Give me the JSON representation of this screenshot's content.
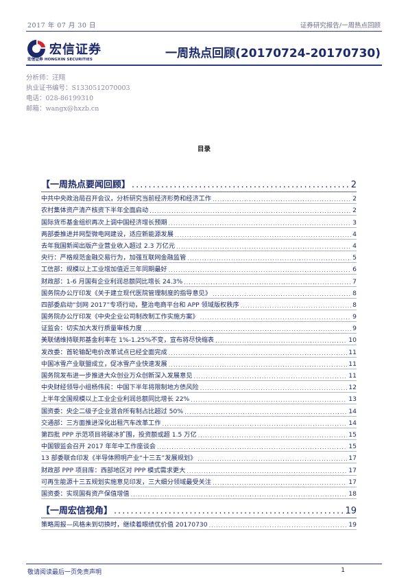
{
  "header": {
    "date": "2017 年 07 月 30 日",
    "category": "证券研究报告/一周热点回顾",
    "logo_cn": "宏信证券",
    "logo_en": "宏信证券 HONGXIN SECURITIES",
    "title": "一周热点回顾(20170724-20170730)"
  },
  "analyst": {
    "name": "分析师：汪翔",
    "license": "执业证书编号：S1330512070003",
    "phone": "电话：028-86199310",
    "email": "邮箱：wangx@hxzb.cn"
  },
  "toc_heading": "目录",
  "sections": [
    {
      "title": "【一周热点要闻回顾】",
      "page": "2",
      "entries": [
        {
          "label": "中共中央政治局召开会议，分析研究当前经济形势和经济工作",
          "page": "2"
        },
        {
          "label": "农村集体资产清产核资下半年全面启动",
          "page": "2"
        },
        {
          "label": "国际货币基金组织再次上调中国经济增长预期",
          "page": "3"
        },
        {
          "label": "两部委推进并网型微电网建设，适应新能源发展",
          "page": "4"
        },
        {
          "label": "去年我国新闻出版产业营业收入超过 2.3 万亿元",
          "page": "4"
        },
        {
          "label": "央行：严格规范金融交易行为，加强互联网金融监管",
          "page": "5"
        },
        {
          "label": "工信部：规模以上工业增加值近三年同期最好",
          "page": "6"
        },
        {
          "label": "财政部：1-6 月国有企业利润总额同比增长 24.3%",
          "page": "7"
        },
        {
          "label": "国务院办公厅印发《关于建立现代医院管理制度的指导意见》",
          "page": "8"
        },
        {
          "label": "四部委启动“剑网 2017”专项行动，整治电商平台和 APP 领域版权秩序",
          "page": "8"
        },
        {
          "label": "国务院办公厅印发《中央企业公司制改制工作实施方案》",
          "page": "9"
        },
        {
          "label": "证监会：切实加大发行质量审核力度",
          "page": "9"
        },
        {
          "label": "美联储维持联邦基金利率在 1%-1.25%不变，宣布将尽快缩表",
          "page": "10"
        },
        {
          "label": "发改委：首轮输配电价改革试点已经全面完成",
          "page": "11"
        },
        {
          "label": "中国冰雪产业联盟成立，促冰雪产业快速发展",
          "page": "11"
        },
        {
          "label": "国务院发布进一步推进大众创业万众创新深入发展意见",
          "page": "11"
        },
        {
          "label": "中央财经领导小组杨伟民：中国下半年将限制地方债风险",
          "page": "12"
        },
        {
          "label": "上半年全国规模以上工业企业利润总额同比增长 22%",
          "page": "13"
        },
        {
          "label": "国资委：央企二级子企业混合所有制占比超过 50%",
          "page": "14"
        },
        {
          "label": "交通部：三方面推进深化出租汽车改革工作",
          "page": "14"
        },
        {
          "label": "第四批 PPP 示范项目将破冰扩围，投资额或超 1.5 万亿",
          "page": "15"
        },
        {
          "label": "中国银监会召开 2017 年年中工作座谈会",
          "page": "15"
        },
        {
          "label": "13 部委联合印发《半导体照明产业“十三五”发展规划》",
          "page": "17"
        },
        {
          "label": "财政部 PPP 项目库：西部地区对 PPP 模式需求更大",
          "page": "17"
        },
        {
          "label": "可再生能源十三五规划实施意见印发，三大细分领域最受关注",
          "page": "17"
        },
        {
          "label": "国资委：实现国有资产保值增值",
          "page": "18"
        }
      ]
    },
    {
      "title": "【一周宏信视角】",
      "page": "19",
      "entries": [
        {
          "label": "策略周报—风格未到切换时，继续着眼绩优价值 20170730",
          "page": "19"
        }
      ]
    }
  ],
  "footer": {
    "disclaimer": "敬请阅读最后一页免责声明",
    "page": "1"
  },
  "colors": {
    "brand": "#1c2a6c",
    "rule": "#2b3b8c",
    "logo_red": "#d8262c"
  }
}
